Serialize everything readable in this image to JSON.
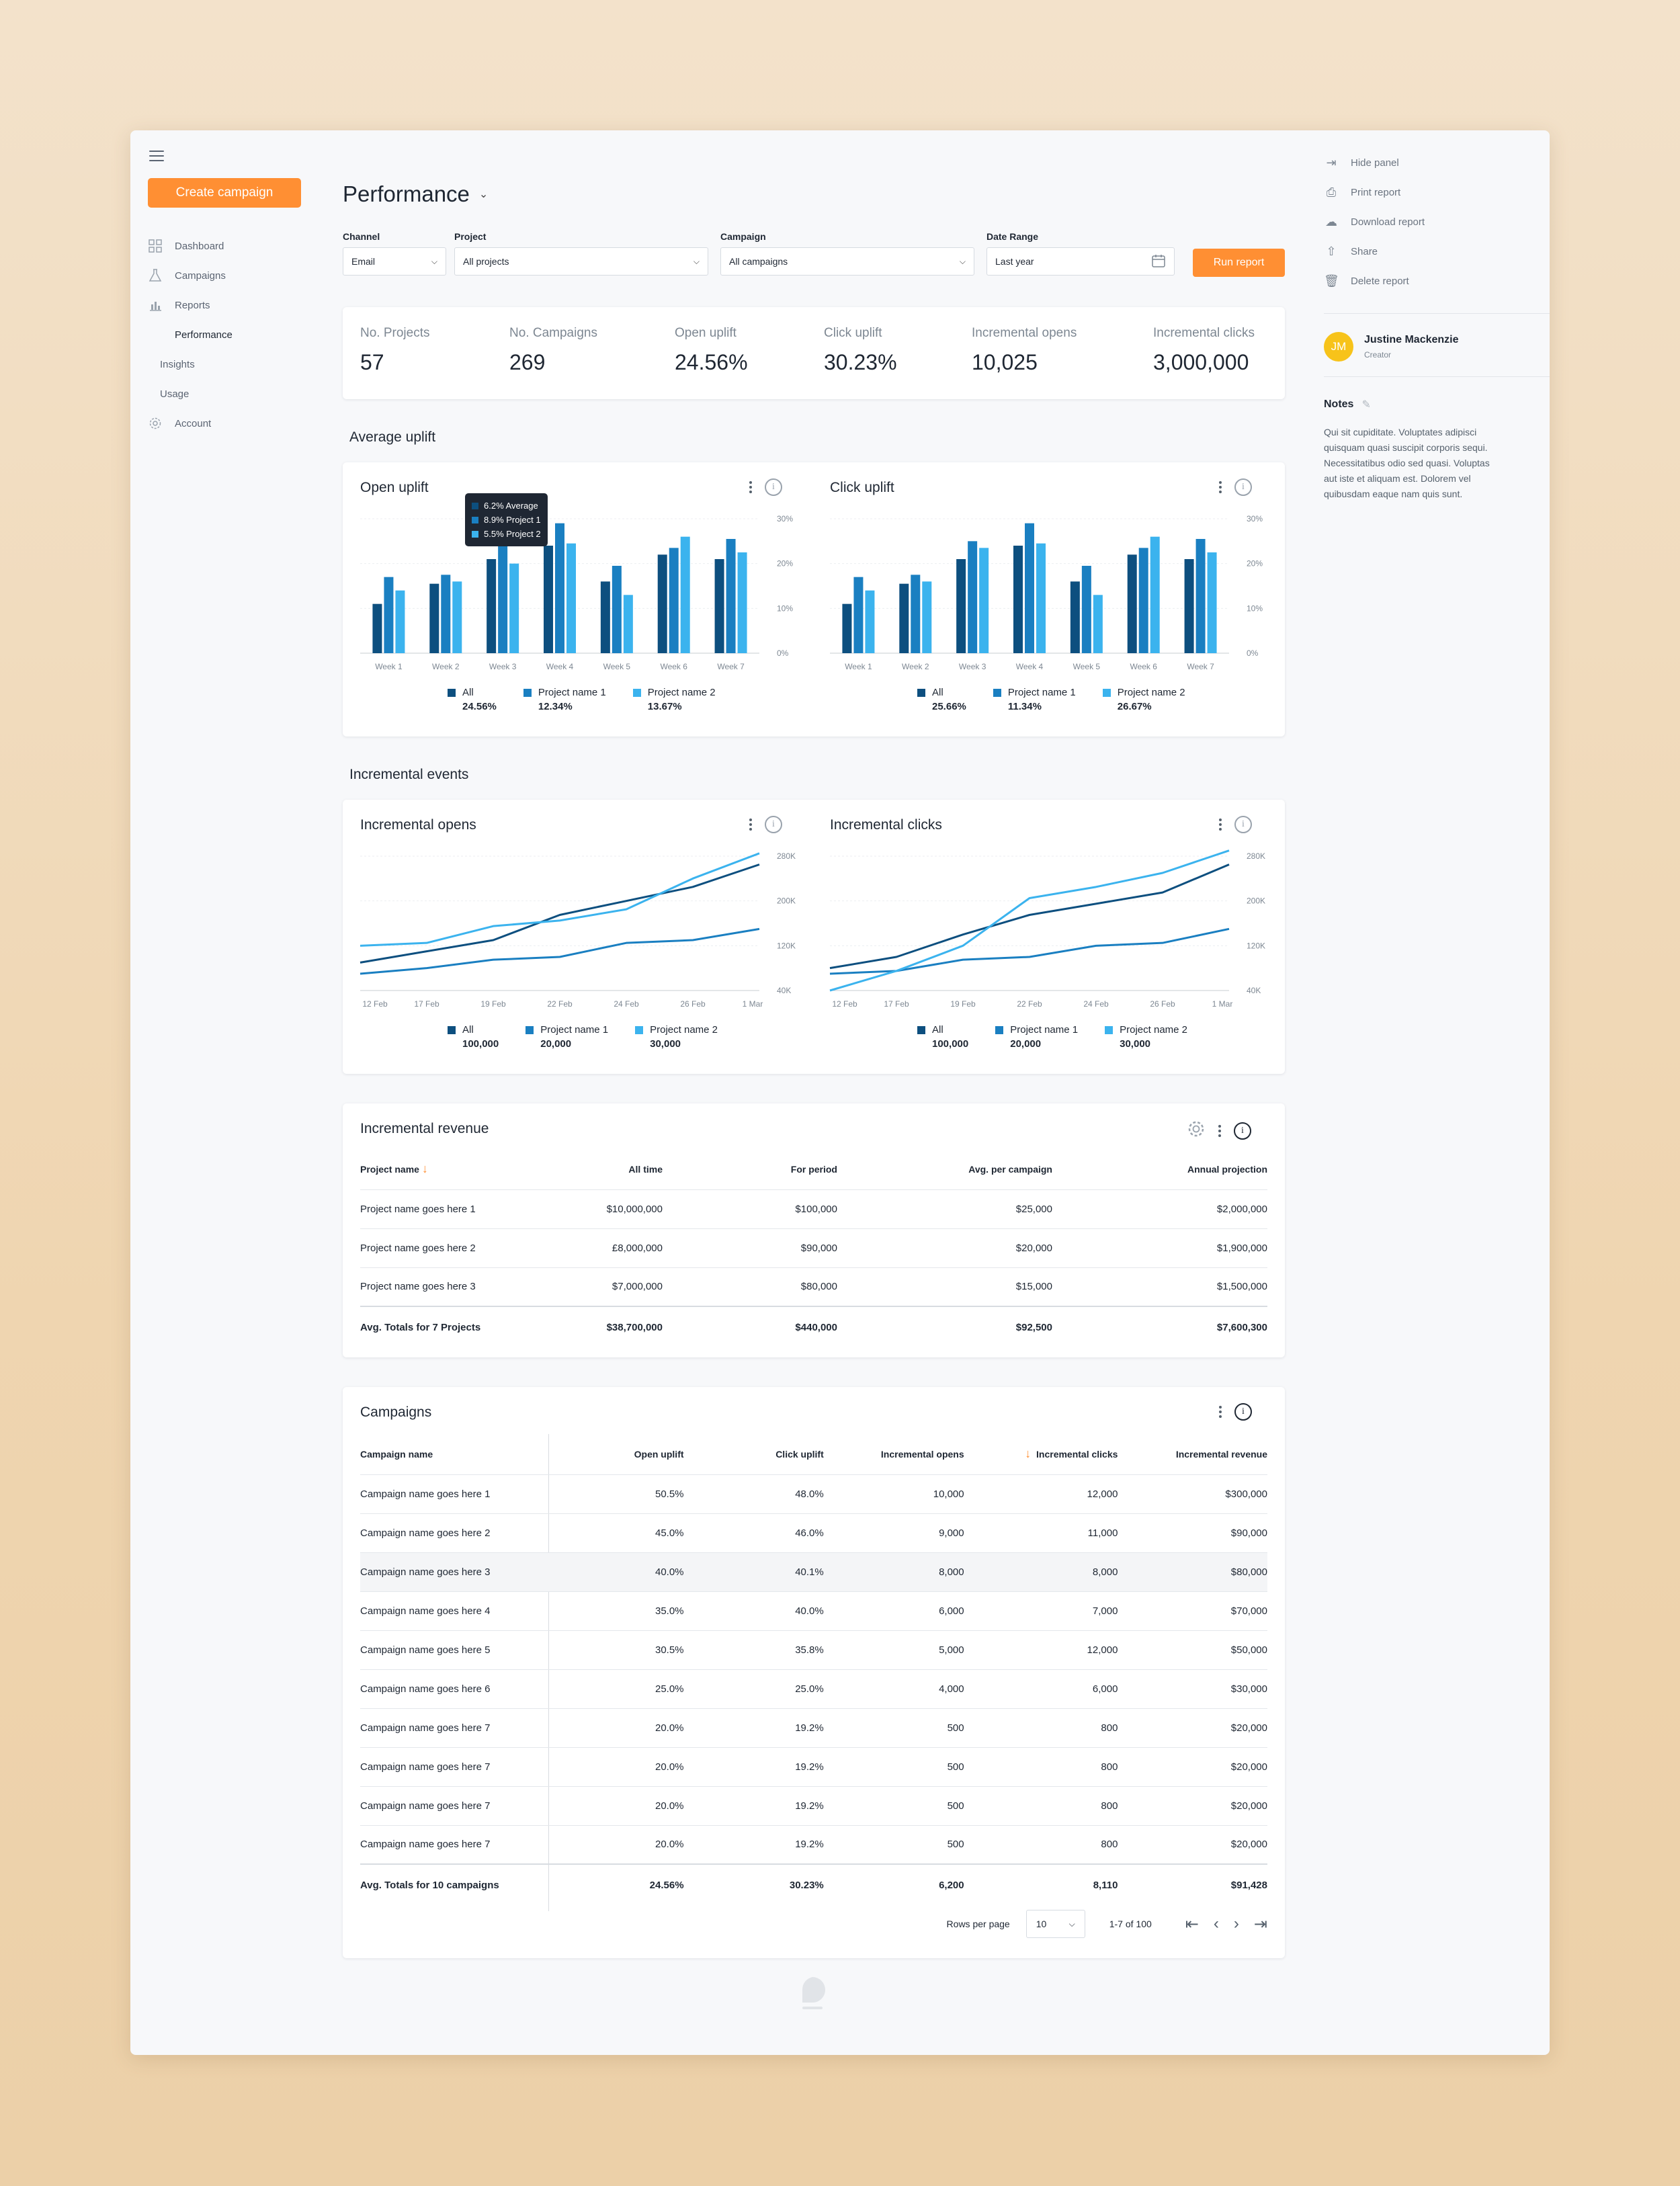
{
  "sidebar": {
    "create_label": "Create campaign",
    "items": [
      {
        "label": "Dashboard"
      },
      {
        "label": "Campaigns"
      },
      {
        "label": "Reports"
      },
      {
        "label": "Performance"
      },
      {
        "label": "Insights"
      },
      {
        "label": "Usage"
      },
      {
        "label": "Account"
      }
    ]
  },
  "header": {
    "title": "Performance"
  },
  "filters": {
    "channel": {
      "label": "Channel",
      "value": "Email"
    },
    "project": {
      "label": "Project",
      "value": "All projects"
    },
    "campaign": {
      "label": "Campaign",
      "value": "All campaigns"
    },
    "date_range": {
      "label": "Date Range",
      "value": "Last year"
    },
    "run_label": "Run report"
  },
  "stats": [
    {
      "label": "No. Projects",
      "value": "57"
    },
    {
      "label": "No. Campaigns",
      "value": "269"
    },
    {
      "label": "Open uplift",
      "value": "24.56%"
    },
    {
      "label": "Click uplift",
      "value": "30.23%"
    },
    {
      "label": "Incremental opens",
      "value": "10,025"
    },
    {
      "label": "Incremental clicks",
      "value": "3,000,000"
    }
  ],
  "sections": {
    "average_uplift": "Average uplift",
    "incremental_events": "Incremental events"
  },
  "colors": {
    "all": "#0d4f7f",
    "project1": "#1a7fc1",
    "project2": "#3bb3ee",
    "accent": "#ff8f33"
  },
  "chart_data": [
    {
      "type": "bar",
      "title": "Open uplift",
      "categories": [
        "Week 1",
        "Week 2",
        "Week 3",
        "Week 4",
        "Week 5",
        "Week 6",
        "Week 7"
      ],
      "series": [
        {
          "name": "All",
          "values": [
            11,
            15.5,
            21,
            24,
            16,
            22,
            21
          ]
        },
        {
          "name": "Project name 1",
          "values": [
            17,
            17.5,
            27,
            29,
            19.5,
            23.5,
            25.5
          ]
        },
        {
          "name": "Project name 2",
          "values": [
            14,
            16,
            20,
            24.5,
            13,
            26,
            22.5
          ]
        }
      ],
      "yticks": [
        "30%",
        "20%",
        "10%",
        "0%"
      ],
      "ylim": [
        0,
        30
      ],
      "legend_values": [
        "24.56%",
        "12.34%",
        "13.67%"
      ],
      "tooltip": [
        "6.2% Average",
        "8.9% Project 1",
        "5.5% Project 2"
      ]
    },
    {
      "type": "bar",
      "title": "Click uplift",
      "categories": [
        "Week 1",
        "Week 2",
        "Week 3",
        "Week 4",
        "Week 5",
        "Week 6",
        "Week 7"
      ],
      "series": [
        {
          "name": "All",
          "values": [
            11,
            15.5,
            21,
            24,
            16,
            22,
            21
          ]
        },
        {
          "name": "Project name 1",
          "values": [
            17,
            17.5,
            25,
            29,
            19.5,
            23.5,
            25.5
          ]
        },
        {
          "name": "Project name 2",
          "values": [
            14,
            16,
            23.5,
            24.5,
            13,
            26,
            22.5
          ]
        }
      ],
      "yticks": [
        "30%",
        "20%",
        "10%",
        "0%"
      ],
      "ylim": [
        0,
        30
      ],
      "legend_values": [
        "25.66%",
        "11.34%",
        "26.67%"
      ]
    },
    {
      "type": "line",
      "title": "Incremental opens",
      "x": [
        "12 Feb",
        "17 Feb",
        "19 Feb",
        "22 Feb",
        "24 Feb",
        "26 Feb",
        "1 Mar"
      ],
      "series": [
        {
          "name": "All",
          "values": [
            90000,
            110000,
            130000,
            175000,
            200000,
            225000,
            265000
          ]
        },
        {
          "name": "Project name 1",
          "values": [
            70000,
            80000,
            95000,
            100000,
            125000,
            130000,
            150000
          ]
        },
        {
          "name": "Project name 2",
          "values": [
            120000,
            125000,
            155000,
            165000,
            185000,
            240000,
            285000
          ]
        }
      ],
      "yticks": [
        "280K",
        "200K",
        "120K",
        "40K"
      ],
      "ylim": [
        40000,
        280000
      ],
      "legend_values": [
        "100,000",
        "20,000",
        "30,000"
      ]
    },
    {
      "type": "line",
      "title": "Incremental clicks",
      "x": [
        "12 Feb",
        "17 Feb",
        "19 Feb",
        "22 Feb",
        "24 Feb",
        "26 Feb",
        "1 Mar"
      ],
      "series": [
        {
          "name": "All",
          "values": [
            80000,
            100000,
            140000,
            175000,
            195000,
            215000,
            265000
          ]
        },
        {
          "name": "Project name 1",
          "values": [
            70000,
            75000,
            95000,
            100000,
            120000,
            125000,
            150000
          ]
        },
        {
          "name": "Project name 2",
          "values": [
            40000,
            75000,
            120000,
            205000,
            225000,
            250000,
            290000
          ]
        }
      ],
      "yticks": [
        "280K",
        "200K",
        "120K",
        "40K"
      ],
      "ylim": [
        40000,
        280000
      ],
      "legend_values": [
        "100,000",
        "20,000",
        "30,000"
      ]
    }
  ],
  "revenue": {
    "title": "Incremental revenue",
    "columns": [
      "Project name",
      "All time",
      "For period",
      "Avg. per campaign",
      "Annual projection"
    ],
    "rows": [
      [
        "Project name goes here 1",
        "$10,000,000",
        "$100,000",
        "$25,000",
        "$2,000,000"
      ],
      [
        "Project name goes here 2",
        "£8,000,000",
        "$90,000",
        "$20,000",
        "$1,900,000"
      ],
      [
        "Project name goes here 3",
        "$7,000,000",
        "$80,000",
        "$15,000",
        "$1,500,000"
      ]
    ],
    "total": [
      "Avg. Totals for 7 Projects",
      "$38,700,000",
      "$440,000",
      "$92,500",
      "$7,600,300"
    ]
  },
  "campaigns": {
    "title": "Campaigns",
    "columns": [
      "Campaign name",
      "Open uplift",
      "Click uplift",
      "Incremental opens",
      "Incremental clicks",
      "Incremental revenue"
    ],
    "rows": [
      [
        "Campaign name goes here 1",
        "50.5%",
        "48.0%",
        "10,000",
        "12,000",
        "$300,000"
      ],
      [
        "Campaign name goes here 2",
        "45.0%",
        "46.0%",
        "9,000",
        "11,000",
        "$90,000"
      ],
      [
        "Campaign name goes here 3",
        "40.0%",
        "40.1%",
        "8,000",
        "8,000",
        "$80,000"
      ],
      [
        "Campaign name goes here 4",
        "35.0%",
        "40.0%",
        "6,000",
        "7,000",
        "$70,000"
      ],
      [
        "Campaign name goes here 5",
        "30.5%",
        "35.8%",
        "5,000",
        "12,000",
        "$50,000"
      ],
      [
        "Campaign name goes here 6",
        "25.0%",
        "25.0%",
        "4,000",
        "6,000",
        "$30,000"
      ],
      [
        "Campaign name goes here 7",
        "20.0%",
        "19.2%",
        "500",
        "800",
        "$20,000"
      ],
      [
        "Campaign name goes here 7",
        "20.0%",
        "19.2%",
        "500",
        "800",
        "$20,000"
      ],
      [
        "Campaign name goes here 7",
        "20.0%",
        "19.2%",
        "500",
        "800",
        "$20,000"
      ],
      [
        "Campaign name goes here 7",
        "20.0%",
        "19.2%",
        "500",
        "800",
        "$20,000"
      ]
    ],
    "total": [
      "Avg. Totals for 10 campaigns",
      "24.56%",
      "30.23%",
      "6,200",
      "8,110",
      "$91,428"
    ],
    "pagination": {
      "rows_label": "Rows per page",
      "rows_value": "10",
      "range": "1-7 of 100"
    }
  },
  "right_panel": {
    "actions": [
      {
        "label": "Hide panel",
        "icon": "hide-panel-icon"
      },
      {
        "label": "Print report",
        "icon": "print-icon"
      },
      {
        "label": "Download report",
        "icon": "download-icon"
      },
      {
        "label": "Share",
        "icon": "share-icon"
      },
      {
        "label": "Delete report",
        "icon": "trash-icon"
      }
    ],
    "user": {
      "initials": "JM",
      "name": "Justine Mackenzie",
      "role": "Creator"
    },
    "notes_title": "Notes",
    "notes_text": "Qui sit cupiditate. Voluptates adipisci quisquam quasi suscipit corporis sequi. Necessitatibus odio sed quasi. Voluptas aut iste et aliquam est. Dolorem vel quibusdam eaque nam quis sunt."
  }
}
